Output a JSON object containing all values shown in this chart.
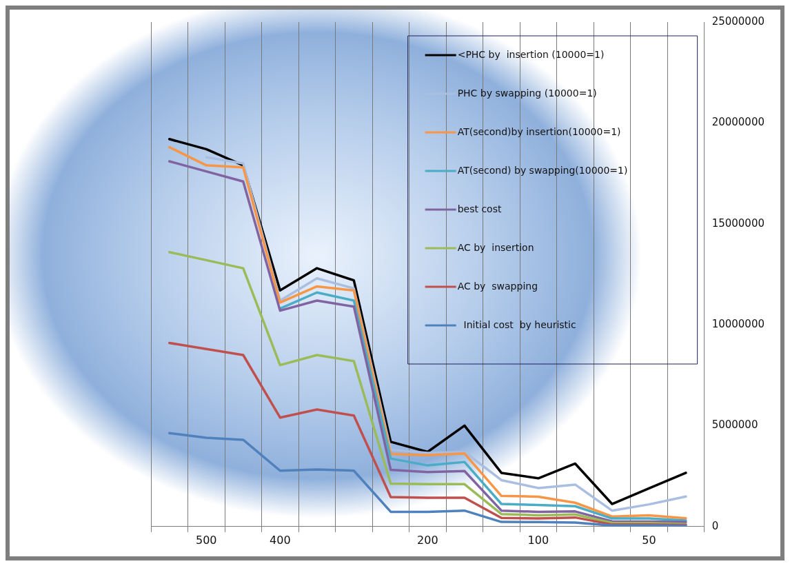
{
  "chart_data": {
    "type": "line",
    "categories": [
      null,
      "500",
      null,
      "400",
      null,
      null,
      null,
      "200",
      null,
      null,
      "100",
      null,
      null,
      "50",
      null
    ],
    "ylim": [
      0,
      25000000
    ],
    "yticks": [
      0,
      5000000,
      10000000,
      15000000,
      20000000,
      25000000
    ],
    "grid": "x",
    "legend": "top right",
    "marker": "none",
    "line_style": "solid",
    "series": [
      {
        "name": "<PHC by  insertion (10000=1)",
        "color": "#000000",
        "values": [
          19200000,
          18700000,
          17900000,
          11700000,
          12800000,
          12200000,
          4200000,
          3700000,
          5000000,
          2660000,
          2390000,
          3120000,
          1120000,
          1890000,
          2660000
        ]
      },
      {
        "name": "PHC by swapping (10000=1)",
        "color": "#a9bee0",
        "values": [
          null,
          18300000,
          18000000,
          11200000,
          12300000,
          11800000,
          3800000,
          3650000,
          3700000,
          2300000,
          1910000,
          2080000,
          790000,
          1100000,
          1490000
        ]
      },
      {
        "name": "AT(second)by insertion(10000=1)",
        "color": "#f79646",
        "values": [
          18800000,
          17900000,
          17800000,
          11100000,
          11900000,
          11700000,
          3600000,
          3540000,
          3620000,
          1520000,
          1480000,
          1180000,
          500000,
          560000,
          410000
        ]
      },
      {
        "name": "AT(second) by swapping(10000=1)",
        "color": "#4bacc6",
        "values": [
          null,
          null,
          null,
          10800000,
          11600000,
          11200000,
          3370000,
          3030000,
          3200000,
          1120000,
          1070000,
          1010000,
          400000,
          400000,
          300000
        ]
      },
      {
        "name": "best cost",
        "color": "#8064a2",
        "values": [
          18100000,
          17600000,
          17100000,
          10700000,
          11200000,
          10900000,
          2810000,
          2700000,
          2750000,
          790000,
          730000,
          750000,
          260000,
          250000,
          220000
        ]
      },
      {
        "name": "AC by  insertion",
        "color": "#9bbb59",
        "values": [
          13600000,
          13200000,
          12800000,
          8000000,
          8500000,
          8200000,
          2130000,
          2100000,
          2100000,
          620000,
          560000,
          600000,
          180000,
          170000,
          120000
        ]
      },
      {
        "name": "AC by  swapping",
        "color": "#c0504d",
        "values": [
          9100000,
          8800000,
          8500000,
          5400000,
          5800000,
          5500000,
          1460000,
          1430000,
          1430000,
          430000,
          400000,
          450000,
          100000,
          100000,
          80000
        ]
      },
      {
        "name": "  Initial cost  by heuristic",
        "color": "#4f81bd",
        "values": [
          4630000,
          4400000,
          4300000,
          2770000,
          2830000,
          2770000,
          730000,
          730000,
          790000,
          230000,
          220000,
          200000,
          50000,
          50000,
          40000
        ]
      }
    ]
  }
}
